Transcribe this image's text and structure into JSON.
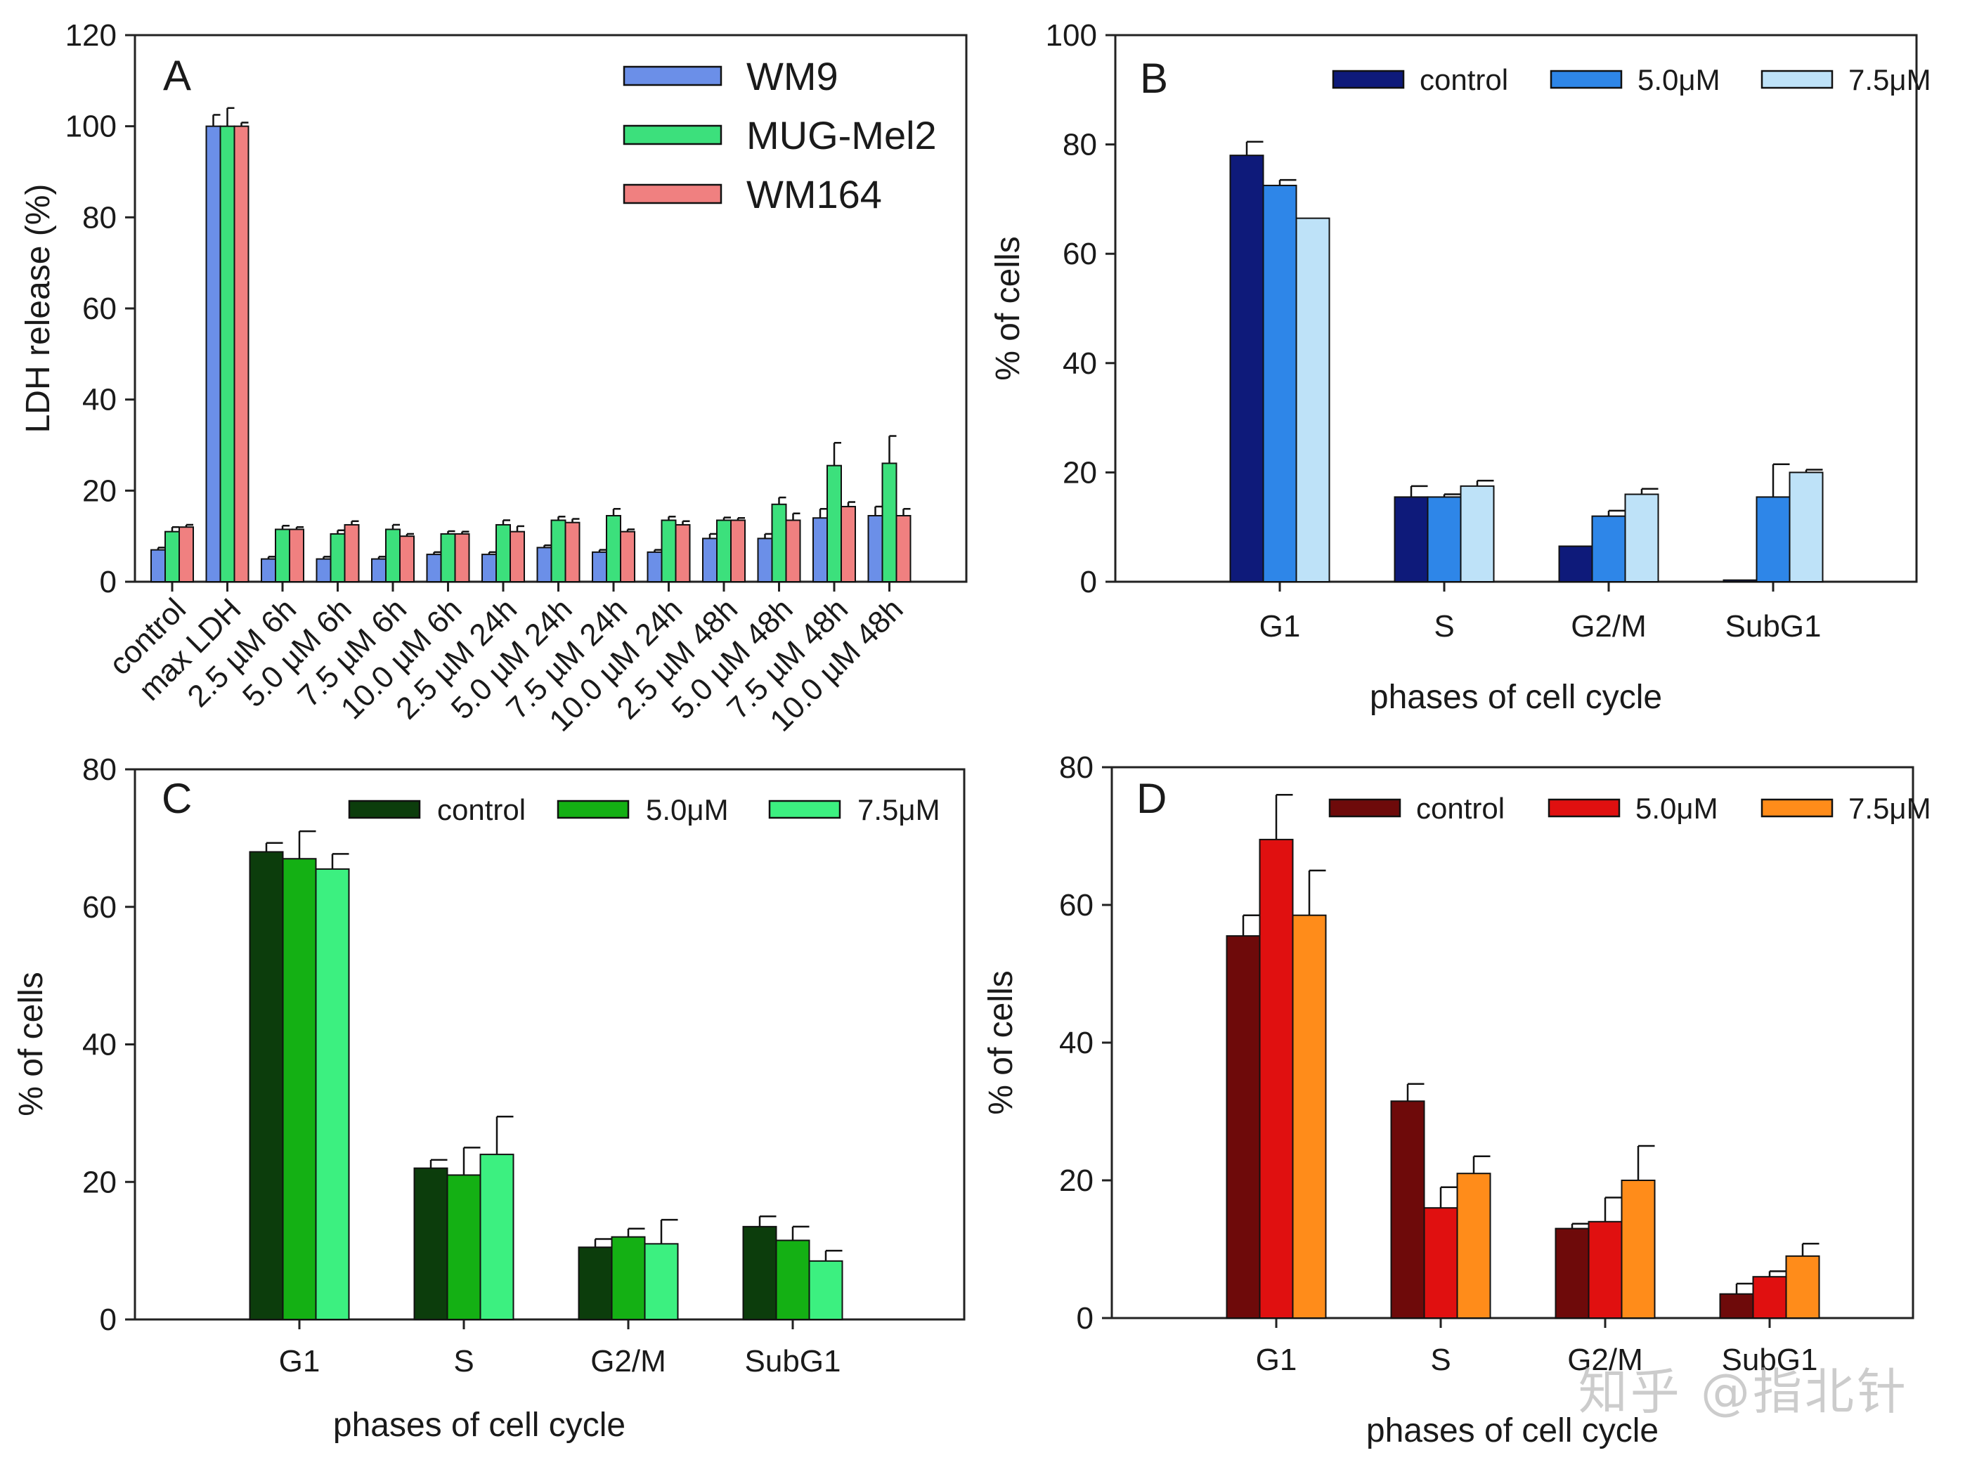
{
  "chart_data": [
    {
      "panel": "A",
      "type": "bar",
      "ylabel": "LDH release (%)",
      "xlabel": "",
      "ylim": [
        0,
        120
      ],
      "yticks": [
        "0",
        "20",
        "40",
        "60",
        "80",
        "100",
        "120"
      ],
      "grid": false,
      "legend_position": "top-right",
      "categories": [
        "control",
        "max LDH",
        "2.5 µM 6h",
        "5.0 µM 6h",
        "7.5 µM 6h",
        "10.0 µM 6h",
        "2.5 µM 24h",
        "5.0 µM 24h",
        "7.5 µM 24h",
        "10.0 µM 24h",
        "2.5 µM 48h",
        "5.0 µM 48h",
        "7.5 µM 48h",
        "10.0 µM 48h"
      ],
      "series": [
        {
          "name": "WM9",
          "color": "#6B8FE8",
          "values": [
            7,
            100,
            5,
            5,
            5,
            6,
            6,
            7.5,
            6.5,
            6.5,
            9.5,
            9.5,
            14,
            14.5
          ],
          "errors": [
            0.5,
            2.5,
            0.5,
            0.5,
            0.5,
            0.5,
            0.5,
            0.5,
            0.5,
            0.5,
            1,
            1,
            2,
            2
          ]
        },
        {
          "name": "MUG-Mel2",
          "color": "#3CE07C",
          "values": [
            11,
            100,
            11.5,
            10.5,
            11.5,
            10.5,
            12.5,
            13.5,
            14.5,
            13.5,
            13.5,
            17,
            25.5,
            26
          ],
          "errors": [
            1,
            4,
            0.8,
            0.8,
            1,
            0.6,
            1,
            0.8,
            1.5,
            0.8,
            0.6,
            1.5,
            5,
            6
          ]
        },
        {
          "name": "WM164",
          "color": "#F08080",
          "values": [
            12,
            100,
            11.5,
            12.5,
            10,
            10.5,
            11,
            13,
            11,
            12.5,
            13.5,
            13.5,
            16.5,
            14.5
          ],
          "errors": [
            0.5,
            0.8,
            0.5,
            0.8,
            0.5,
            0.5,
            1.2,
            0.8,
            0.5,
            0.8,
            0.5,
            1.5,
            1,
            1.5
          ]
        }
      ]
    },
    {
      "panel": "B",
      "type": "bar",
      "ylabel": "% of cells",
      "xlabel": "phases of cell cycle",
      "ylim": [
        0,
        100
      ],
      "yticks": [
        "0",
        "20",
        "40",
        "60",
        "80",
        "100"
      ],
      "grid": false,
      "legend_position": "top",
      "categories": [
        "G1",
        "S",
        "G2/M",
        "SubG1"
      ],
      "series": [
        {
          "name": "control",
          "color": "#0E1A7A",
          "values": [
            78,
            15.5,
            6.5,
            0.3
          ],
          "errors": [
            2.5,
            2,
            0,
            0
          ]
        },
        {
          "name": "5.0μM",
          "color": "#2E86E8",
          "values": [
            72.5,
            15.5,
            12,
            15.5
          ],
          "errors": [
            1,
            0.5,
            1,
            6
          ]
        },
        {
          "name": "7.5μM",
          "color": "#BEE2F8",
          "values": [
            66.5,
            17.5,
            16,
            20
          ],
          "errors": [
            0,
            1,
            1,
            0.5
          ]
        }
      ]
    },
    {
      "panel": "C",
      "type": "bar",
      "ylabel": "% of cells",
      "xlabel": "phases of cell cycle",
      "ylim": [
        0,
        80
      ],
      "yticks": [
        "0",
        "20",
        "40",
        "60",
        "80"
      ],
      "grid": false,
      "legend_position": "top",
      "categories": [
        "G1",
        "S",
        "G2/M",
        "SubG1"
      ],
      "series": [
        {
          "name": "control",
          "color": "#0C3D0C",
          "values": [
            68,
            22,
            10.5,
            13.5
          ],
          "errors": [
            1.3,
            1.2,
            1.2,
            1.5
          ]
        },
        {
          "name": "5.0μM",
          "color": "#14B014",
          "values": [
            67,
            21,
            12,
            11.5
          ],
          "errors": [
            4,
            4,
            1.2,
            2
          ]
        },
        {
          "name": "7.5μM",
          "color": "#3CF080",
          "values": [
            65.5,
            24,
            11,
            8.5
          ],
          "errors": [
            2.2,
            5.5,
            3.5,
            1.5
          ]
        }
      ]
    },
    {
      "panel": "D",
      "type": "bar",
      "ylabel": "% of cells",
      "xlabel": "phases of cell cycle",
      "ylim": [
        0,
        80
      ],
      "yticks": [
        "0",
        "20",
        "40",
        "60",
        "80"
      ],
      "grid": false,
      "legend_position": "top",
      "categories": [
        "G1",
        "S",
        "G2/M",
        "SubG1"
      ],
      "series": [
        {
          "name": "control",
          "color": "#6E0A0A",
          "values": [
            55.5,
            31.5,
            13,
            3.5
          ],
          "errors": [
            3,
            2.5,
            0.7,
            1.5
          ]
        },
        {
          "name": "5.0μM",
          "color": "#E01010",
          "values": [
            69.5,
            16,
            14,
            6
          ],
          "errors": [
            6.5,
            3,
            3.5,
            0.8
          ]
        },
        {
          "name": "7.5μM",
          "color": "#FF8C1A",
          "values": [
            58.5,
            21,
            20,
            9
          ],
          "errors": [
            6.5,
            2.5,
            5,
            1.8
          ]
        }
      ]
    }
  ],
  "watermark": "知乎 @指北针"
}
